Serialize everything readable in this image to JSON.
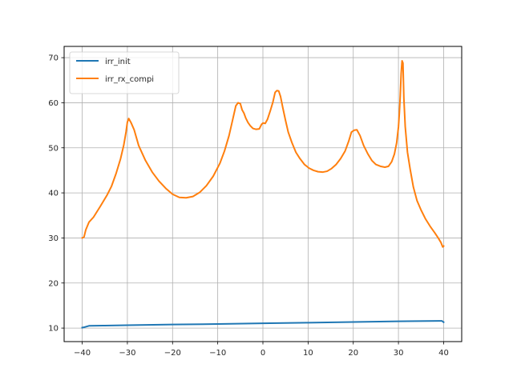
{
  "chart_data": {
    "type": "line",
    "title": "",
    "xlabel": "",
    "ylabel": "",
    "xlim": [
      -44,
      44
    ],
    "ylim": [
      7.0,
      72.5
    ],
    "xticks": [
      -40,
      -30,
      -20,
      -10,
      0,
      10,
      20,
      30,
      40
    ],
    "yticks": [
      10,
      20,
      30,
      40,
      50,
      60,
      70
    ],
    "grid": true,
    "legend": "top-left",
    "series": [
      {
        "name": "irr_init",
        "color": "#1f77b4",
        "x": [
          -40,
          -39.5,
          -38.5,
          -35,
          -30,
          -20,
          -10,
          0,
          10,
          20,
          30,
          39,
          39.6,
          40
        ],
        "y": [
          10.1,
          10.2,
          10.5,
          10.55,
          10.65,
          10.8,
          10.9,
          11.05,
          11.2,
          11.35,
          11.5,
          11.6,
          11.6,
          11.3
        ]
      },
      {
        "name": "irr_rx_compi",
        "color": "#ff7f0e",
        "x": [
          -40,
          -39.6,
          -39.2,
          -38.5,
          -37.5,
          -36,
          -34.5,
          -33.5,
          -32.5,
          -31.5,
          -30.8,
          -30.3,
          -30,
          -29.7,
          -29.2,
          -28.5,
          -27.5,
          -26,
          -24.5,
          -23,
          -21.5,
          -20,
          -18.5,
          -17,
          -15.5,
          -14,
          -12.5,
          -11,
          -9.5,
          -8.5,
          -7.5,
          -6.7,
          -6,
          -5.5,
          -5,
          -4.6,
          -4.2,
          -3.8,
          -3.3,
          -2.8,
          -2.2,
          -1.5,
          -0.8,
          -0.3,
          0,
          0.5,
          1,
          1.6,
          2.2,
          2.7,
          3.1,
          3.5,
          3.9,
          4.4,
          5,
          5.6,
          6.4,
          7.3,
          8.2,
          9.2,
          10.2,
          11.2,
          12.2,
          13.2,
          14.2,
          15.2,
          16.2,
          17.2,
          18.2,
          19,
          19.6,
          20.2,
          20.8,
          21.5,
          22.3,
          23.2,
          24.1,
          25,
          26,
          27,
          27.8,
          28.5,
          29.1,
          29.6,
          30,
          30.2,
          30.4,
          30.6,
          30.8,
          31,
          31.2,
          31.5,
          32,
          32.6,
          33.3,
          34.1,
          35,
          36,
          37,
          38,
          38.8,
          39.4,
          39.8,
          40
        ],
        "y": [
          30.0,
          30.2,
          31.8,
          33.5,
          34.6,
          37.0,
          39.5,
          41.5,
          44.3,
          47.6,
          50.6,
          53.5,
          55.7,
          56.5,
          55.6,
          54.0,
          50.5,
          47.2,
          44.6,
          42.6,
          41.0,
          39.7,
          39.0,
          38.9,
          39.2,
          40.1,
          41.6,
          43.7,
          46.6,
          49.3,
          52.7,
          56.2,
          59.3,
          60.0,
          59.8,
          58.4,
          57.7,
          56.6,
          55.6,
          54.9,
          54.3,
          54.1,
          54.2,
          55.2,
          55.5,
          55.4,
          56.3,
          58.1,
          60.1,
          62.3,
          62.7,
          62.6,
          61.4,
          58.9,
          56.1,
          53.5,
          51.2,
          49.0,
          47.6,
          46.3,
          45.5,
          45.0,
          44.7,
          44.6,
          44.8,
          45.4,
          46.3,
          47.6,
          49.3,
          51.5,
          53.5,
          53.9,
          54.0,
          52.7,
          50.5,
          48.7,
          47.2,
          46.3,
          45.9,
          45.7,
          45.9,
          46.9,
          48.6,
          51.1,
          54.6,
          57.7,
          61.6,
          66.5,
          69.3,
          68.8,
          61.0,
          54.7,
          49.0,
          45.2,
          41.3,
          38.3,
          36.2,
          34.2,
          32.6,
          31.2,
          30.0,
          29.0,
          28.0,
          28.2
        ]
      }
    ]
  }
}
